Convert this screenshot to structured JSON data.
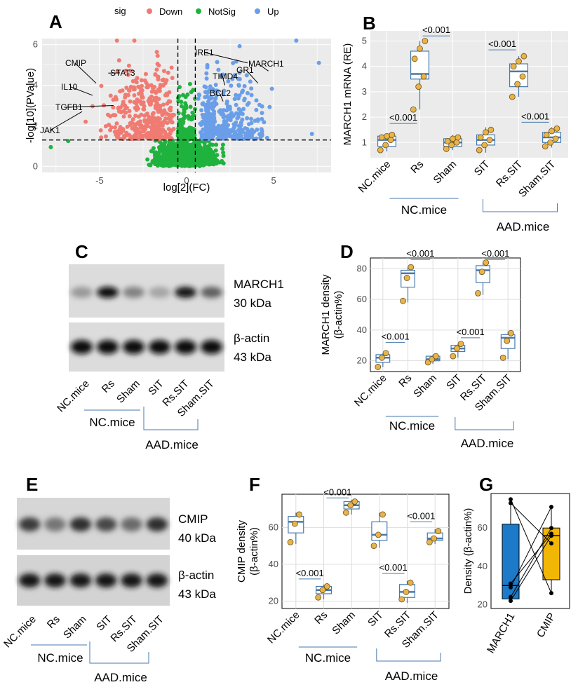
{
  "colors": {
    "down": "#f07b72",
    "notsig": "#1fb33e",
    "up": "#6a9ee8",
    "box_line": "#4679ae",
    "point": "#e8b44a",
    "panel_bg": "#ebebeb",
    "march1_bar": "#1d7ac9",
    "cmip_bar": "#f2b705"
  },
  "panel_labels": [
    "A",
    "B",
    "C",
    "D",
    "E",
    "F",
    "G"
  ],
  "chart_data": [
    {
      "id": "A",
      "type": "scatter",
      "xlabel": "log[2](FC)",
      "ylabel": "-log[10](PValue)",
      "xlim": [
        -8.3,
        8.3
      ],
      "ylim": [
        -0.3,
        6.3
      ],
      "xticks": [
        "-5",
        "0",
        "5"
      ],
      "yticks": [
        "0",
        "2",
        "4",
        "6"
      ],
      "thresholds": {
        "x": [
          -0.5,
          0.5
        ],
        "y": 1.3
      },
      "legend": {
        "title": "sig",
        "position": "top",
        "items": [
          "Down",
          "NotSig",
          "Up"
        ]
      },
      "labeled_genes": [
        {
          "name": "CMIP",
          "x": -5.2,
          "y": 4.1
        },
        {
          "name": "IL10",
          "x": -5.4,
          "y": 3.5
        },
        {
          "name": "TGFB1",
          "x": -4.2,
          "y": 3.0
        },
        {
          "name": "JAK1",
          "x": -6.0,
          "y": 2.7
        },
        {
          "name": "STAT3",
          "x": -4.5,
          "y": 4.6
        },
        {
          "name": "IRE1",
          "x": 3.5,
          "y": 5.1
        },
        {
          "name": "GR1",
          "x": 4.1,
          "y": 4.1
        },
        {
          "name": "MARCH1",
          "x": 4.7,
          "y": 4.7
        },
        {
          "name": "TIMD4",
          "x": 2.2,
          "y": 4.0
        },
        {
          "name": "BCL2",
          "x": 2.1,
          "y": 3.2
        }
      ]
    },
    {
      "id": "B",
      "type": "box",
      "ylabel": "MARCH1 mRNA (RE)",
      "categories": [
        "NC.mice",
        "Rs",
        "Sham",
        "SIT",
        "Rs.SIT",
        "Sham.SIT"
      ],
      "ylim": [
        0.4,
        5.4
      ],
      "yticks": [
        "1",
        "2",
        "3",
        "4",
        "5"
      ],
      "boxes": [
        {
          "min": 0.65,
          "q1": 0.85,
          "med": 1.1,
          "q3": 1.25,
          "max": 1.35,
          "points": [
            0.7,
            0.9,
            1.1,
            1.2,
            1.25,
            1.3
          ]
        },
        {
          "min": 2.3,
          "q1": 3.5,
          "med": 3.7,
          "q3": 4.6,
          "max": 5.0,
          "points": [
            2.3,
            3.2,
            3.6,
            4.3,
            4.7,
            5.0
          ]
        },
        {
          "min": 0.7,
          "q1": 0.85,
          "med": 1.0,
          "q3": 1.15,
          "max": 1.3,
          "points": [
            0.75,
            0.9,
            1.0,
            1.05,
            1.15,
            1.2
          ]
        },
        {
          "min": 0.6,
          "q1": 0.9,
          "med": 1.1,
          "q3": 1.3,
          "max": 1.6,
          "points": [
            0.7,
            0.9,
            1.1,
            1.2,
            1.4,
            1.5
          ]
        },
        {
          "min": 2.8,
          "q1": 3.2,
          "med": 3.8,
          "q3": 4.1,
          "max": 4.4,
          "points": [
            2.8,
            3.3,
            3.6,
            4.0,
            4.2,
            4.4
          ]
        },
        {
          "min": 0.8,
          "q1": 1.0,
          "med": 1.2,
          "q3": 1.4,
          "max": 1.6,
          "points": [
            0.85,
            1.0,
            1.15,
            1.3,
            1.45,
            1.55
          ]
        }
      ],
      "comparisons": [
        {
          "from": 0,
          "to": 1,
          "y": 1.75,
          "label": "<0.001"
        },
        {
          "from": 1,
          "to": 2,
          "y": 5.2,
          "label": "<0.001"
        },
        {
          "from": 3,
          "to": 4,
          "y": 4.65,
          "label": "<0.001"
        },
        {
          "from": 4,
          "to": 5,
          "y": 1.8,
          "label": "<0.001"
        }
      ]
    },
    {
      "id": "D",
      "type": "box",
      "ylabel": "MARCH1 density\n(β-actin%)",
      "categories": [
        "NC.mice",
        "Rs",
        "Sham",
        "SIT",
        "Rs.SIT",
        "Sham.SIT"
      ],
      "ylim": [
        13,
        87
      ],
      "yticks": [
        "20",
        "40",
        "60",
        "80"
      ],
      "boxes": [
        {
          "min": 16,
          "q1": 19,
          "med": 22,
          "q3": 24,
          "max": 25,
          "points": [
            16,
            22,
            25
          ]
        },
        {
          "min": 58,
          "q1": 68,
          "med": 77,
          "q3": 79,
          "max": 81,
          "points": [
            59,
            74,
            81
          ]
        },
        {
          "min": 18,
          "q1": 20,
          "med": 21,
          "q3": 23,
          "max": 24,
          "points": [
            19,
            21,
            23
          ]
        },
        {
          "min": 22,
          "q1": 26,
          "med": 28,
          "q3": 30,
          "max": 31,
          "points": [
            23,
            28,
            31
          ]
        },
        {
          "min": 63,
          "q1": 71,
          "med": 79,
          "q3": 82,
          "max": 84,
          "points": [
            64,
            78,
            84
          ]
        },
        {
          "min": 21,
          "q1": 28,
          "med": 35,
          "q3": 37,
          "max": 39,
          "points": [
            22,
            33,
            38
          ]
        }
      ],
      "comparisons": [
        {
          "from": 0,
          "to": 1,
          "y": 32,
          "label": "<0.001"
        },
        {
          "from": 1,
          "to": 2,
          "y": 86,
          "label": "<0.001"
        },
        {
          "from": 3,
          "to": 4,
          "y": 35,
          "label": "<0.001"
        },
        {
          "from": 4,
          "to": 5,
          "y": 86,
          "label": "<0.001"
        }
      ]
    },
    {
      "id": "F",
      "type": "box",
      "ylabel": "CMIP density\n(β-actin%)",
      "categories": [
        "NC.mice",
        "Rs",
        "Sham",
        "SIT",
        "Rs.SIT",
        "Sham.SIT"
      ],
      "ylim": [
        16,
        78
      ],
      "yticks": [
        "20",
        "40",
        "60"
      ],
      "boxes": [
        {
          "min": 51,
          "q1": 57,
          "med": 63,
          "q3": 66,
          "max": 68,
          "points": [
            52,
            62,
            67
          ]
        },
        {
          "min": 21,
          "q1": 24,
          "med": 26,
          "q3": 28,
          "max": 29,
          "points": [
            22,
            26,
            28
          ]
        },
        {
          "min": 67,
          "q1": 70,
          "med": 72,
          "q3": 74,
          "max": 75,
          "points": [
            68,
            72,
            74
          ]
        },
        {
          "min": 49,
          "q1": 53,
          "med": 56,
          "q3": 63,
          "max": 68,
          "points": [
            50,
            56,
            67
          ]
        },
        {
          "min": 19,
          "q1": 22,
          "med": 25,
          "q3": 29,
          "max": 31,
          "points": [
            21,
            25,
            30
          ]
        },
        {
          "min": 51,
          "q1": 53,
          "med": 54,
          "q3": 57,
          "max": 59,
          "points": [
            52,
            54,
            58
          ]
        }
      ],
      "comparisons": [
        {
          "from": 0,
          "to": 1,
          "y": 32,
          "label": "<0.001"
        },
        {
          "from": 1,
          "to": 2,
          "y": 76,
          "label": "<0.001"
        },
        {
          "from": 3,
          "to": 4,
          "y": 35,
          "label": "<0.001"
        },
        {
          "from": 4,
          "to": 5,
          "y": 63,
          "label": "<0.001"
        }
      ]
    },
    {
      "id": "G",
      "type": "bar",
      "ylabel": "Density (β-actin%)",
      "categories": [
        "MARCH1",
        "CMIP"
      ],
      "ylim": [
        18,
        78
      ],
      "yticks": [
        "20",
        "40",
        "60"
      ],
      "boxes": [
        {
          "min": 21,
          "q1": 23,
          "med": 30,
          "q3": 62,
          "max": 75
        },
        {
          "min": 25,
          "q1": 33,
          "med": 56,
          "q3": 60,
          "max": 71
        }
      ],
      "pairs": [
        [
          75,
          26
        ],
        [
          73,
          52
        ],
        [
          31,
          57
        ],
        [
          29,
          71
        ],
        [
          24,
          60
        ],
        [
          22,
          56
        ]
      ]
    }
  ],
  "panel_c": {
    "band_labels": [
      "MARCH1\n30 kDa",
      "β-actin\n43 kDa"
    ],
    "lanes": [
      "NC.mice",
      "Rs",
      "Sham",
      "SIT",
      "Rs.SIT",
      "Sham.SIT"
    ],
    "march1_intensity": [
      0.35,
      0.95,
      0.45,
      0.3,
      0.9,
      0.6
    ],
    "actin_intensity": [
      0.95,
      0.95,
      0.95,
      0.95,
      0.95,
      0.95
    ]
  },
  "panel_e": {
    "band_labels": [
      "CMIP\n40 kDa",
      "β-actin\n43 kDa"
    ],
    "lanes": [
      "NC.mice",
      "Rs",
      "Sham",
      "SIT",
      "Rs.SIT",
      "Sham.SIT"
    ],
    "cmip_intensity": [
      0.75,
      0.5,
      0.8,
      0.7,
      0.55,
      0.8
    ],
    "actin_intensity": [
      0.9,
      0.9,
      0.9,
      0.9,
      0.9,
      0.9
    ]
  },
  "group_labels": {
    "nc": "NC.mice",
    "aad": "AAD.mice"
  }
}
